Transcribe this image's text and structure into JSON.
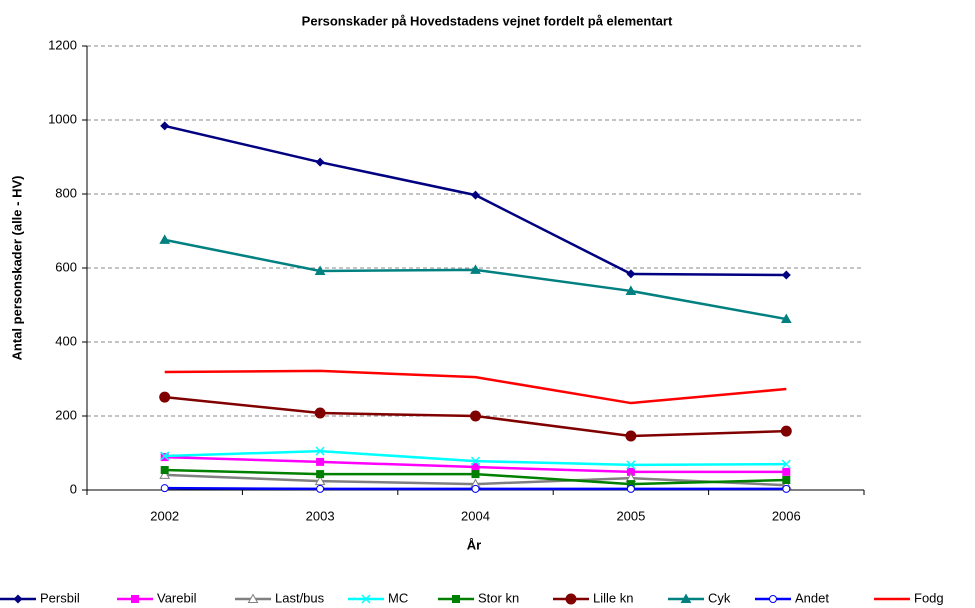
{
  "chart_data": {
    "type": "line",
    "title": "Personskader på Hovedstadens vejnet fordelt på elementart",
    "x_label": "År",
    "y_label": "Antal personskader (alle - HV)",
    "categories": [
      "2002",
      "2003",
      "2004",
      "2005",
      "2006"
    ],
    "ylim": [
      0,
      1200
    ],
    "yticks": [
      0,
      200,
      400,
      600,
      800,
      1000,
      1200
    ],
    "grid": true,
    "legend": "bottom",
    "series": [
      {
        "name": "Persbil",
        "color": "#000080",
        "marker": "diamond",
        "values": [
          984,
          886,
          797,
          584,
          581
        ]
      },
      {
        "name": "Varebil",
        "color": "#ff00ff",
        "marker": "square",
        "values": [
          89,
          76,
          62,
          49,
          49
        ]
      },
      {
        "name": "Last/bus",
        "color": "#808080",
        "marker": "open-triangle",
        "values": [
          41,
          24,
          16,
          32,
          13
        ]
      },
      {
        "name": "MC",
        "color": "#00ffff",
        "marker": "x",
        "values": [
          92,
          105,
          78,
          68,
          70
        ]
      },
      {
        "name": "Stor kn",
        "color": "#008000",
        "marker": "square",
        "values": [
          54,
          43,
          43,
          16,
          27
        ]
      },
      {
        "name": "Lille kn",
        "color": "#800000",
        "marker": "circle",
        "values": [
          251,
          208,
          200,
          146,
          159
        ]
      },
      {
        "name": "Cyk",
        "color": "#008080",
        "marker": "triangle",
        "values": [
          676,
          592,
          595,
          538,
          462
        ]
      },
      {
        "name": "Andet",
        "color": "#0000ff",
        "marker": "open-circle",
        "values": [
          5,
          3,
          3,
          3,
          3
        ]
      },
      {
        "name": "Fodg",
        "color": "#ff0000",
        "marker": "none",
        "values": [
          319,
          322,
          305,
          235,
          273
        ]
      }
    ]
  }
}
